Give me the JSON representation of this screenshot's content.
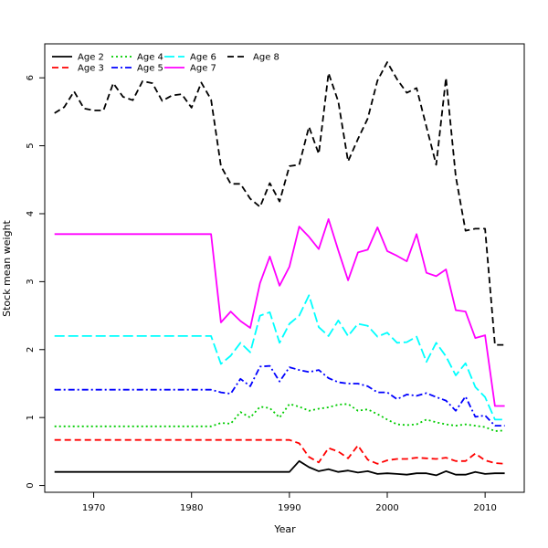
{
  "chart_data": {
    "type": "line",
    "title": "",
    "xlabel": "Year",
    "ylabel": "Stock mean weight",
    "xlim": [
      1965,
      2014
    ],
    "ylim": [
      -0.1,
      6.5
    ],
    "x_ticks": [
      1970,
      1980,
      1990,
      2000,
      2010
    ],
    "y_ticks": [
      0,
      1,
      2,
      3,
      4,
      5,
      6
    ],
    "grid": false,
    "legend_position": "top-left",
    "x": [
      1966,
      1967,
      1968,
      1969,
      1970,
      1971,
      1972,
      1973,
      1974,
      1975,
      1976,
      1977,
      1978,
      1979,
      1980,
      1981,
      1982,
      1983,
      1984,
      1985,
      1986,
      1987,
      1988,
      1989,
      1990,
      1991,
      1992,
      1993,
      1994,
      1995,
      1996,
      1997,
      1998,
      1999,
      2000,
      2001,
      2002,
      2003,
      2004,
      2005,
      2006,
      2007,
      2008,
      2009,
      2010,
      2011,
      2012
    ],
    "series": [
      {
        "name": "Age 2",
        "color": "#000000",
        "dash": "solid",
        "values": [
          0.2,
          0.2,
          0.2,
          0.2,
          0.2,
          0.2,
          0.2,
          0.2,
          0.2,
          0.2,
          0.2,
          0.2,
          0.2,
          0.2,
          0.2,
          0.2,
          0.2,
          0.2,
          0.2,
          0.2,
          0.2,
          0.2,
          0.2,
          0.2,
          0.2,
          0.36,
          0.27,
          0.21,
          0.24,
          0.2,
          0.22,
          0.19,
          0.21,
          0.17,
          0.18,
          0.17,
          0.16,
          0.18,
          0.18,
          0.15,
          0.21,
          0.16,
          0.16,
          0.2,
          0.17,
          0.18,
          0.18
        ]
      },
      {
        "name": "Age 3",
        "color": "#ff0000",
        "dash": "dashed",
        "values": [
          0.67,
          0.67,
          0.67,
          0.67,
          0.67,
          0.67,
          0.67,
          0.67,
          0.67,
          0.67,
          0.67,
          0.67,
          0.67,
          0.67,
          0.67,
          0.67,
          0.67,
          0.67,
          0.67,
          0.67,
          0.67,
          0.67,
          0.67,
          0.67,
          0.67,
          0.62,
          0.42,
          0.34,
          0.55,
          0.5,
          0.4,
          0.59,
          0.38,
          0.32,
          0.37,
          0.39,
          0.39,
          0.41,
          0.4,
          0.39,
          0.41,
          0.36,
          0.36,
          0.47,
          0.37,
          0.33,
          0.32
        ]
      },
      {
        "name": "Age 4",
        "color": "#00cc00",
        "dash": "dotted",
        "values": [
          0.87,
          0.87,
          0.87,
          0.87,
          0.87,
          0.87,
          0.87,
          0.87,
          0.87,
          0.87,
          0.87,
          0.87,
          0.87,
          0.87,
          0.87,
          0.87,
          0.87,
          0.92,
          0.91,
          1.08,
          1.0,
          1.16,
          1.14,
          1.0,
          1.2,
          1.16,
          1.1,
          1.13,
          1.15,
          1.19,
          1.2,
          1.1,
          1.12,
          1.05,
          0.97,
          0.9,
          0.89,
          0.9,
          0.97,
          0.93,
          0.9,
          0.88,
          0.9,
          0.88,
          0.86,
          0.8,
          0.81
        ]
      },
      {
        "name": "Age 5",
        "color": "#0000ff",
        "dash": "dashdot",
        "values": [
          1.41,
          1.41,
          1.41,
          1.41,
          1.41,
          1.41,
          1.41,
          1.41,
          1.41,
          1.41,
          1.41,
          1.41,
          1.41,
          1.41,
          1.41,
          1.41,
          1.41,
          1.37,
          1.35,
          1.57,
          1.46,
          1.75,
          1.76,
          1.53,
          1.74,
          1.7,
          1.67,
          1.7,
          1.58,
          1.52,
          1.5,
          1.5,
          1.46,
          1.37,
          1.37,
          1.27,
          1.34,
          1.32,
          1.36,
          1.3,
          1.25,
          1.1,
          1.31,
          1.01,
          1.03,
          0.88,
          0.88
        ]
      },
      {
        "name": "Age 6",
        "color": "#00ffff",
        "dash": "longdash",
        "values": [
          2.2,
          2.2,
          2.2,
          2.2,
          2.2,
          2.2,
          2.2,
          2.2,
          2.2,
          2.2,
          2.2,
          2.2,
          2.2,
          2.2,
          2.2,
          2.2,
          2.2,
          1.79,
          1.91,
          2.1,
          1.96,
          2.5,
          2.55,
          2.1,
          2.38,
          2.5,
          2.8,
          2.33,
          2.2,
          2.43,
          2.2,
          2.38,
          2.35,
          2.19,
          2.25,
          2.1,
          2.11,
          2.19,
          1.82,
          2.1,
          1.9,
          1.62,
          1.8,
          1.45,
          1.3,
          0.97,
          0.97
        ]
      },
      {
        "name": "Age 7",
        "color": "#ff00ff",
        "dash": "solid",
        "values": [
          3.7,
          3.7,
          3.7,
          3.7,
          3.7,
          3.7,
          3.7,
          3.7,
          3.7,
          3.7,
          3.7,
          3.7,
          3.7,
          3.7,
          3.7,
          3.7,
          3.7,
          2.4,
          2.56,
          2.42,
          2.32,
          2.98,
          3.37,
          2.94,
          3.22,
          3.81,
          3.66,
          3.48,
          3.92,
          3.46,
          3.02,
          3.43,
          3.47,
          3.8,
          3.45,
          3.38,
          3.3,
          3.7,
          3.13,
          3.08,
          3.18,
          2.58,
          2.56,
          2.17,
          2.21,
          1.17,
          1.17
        ]
      },
      {
        "name": "Age 8",
        "color": "#000000",
        "dash": "dashed",
        "values": [
          5.48,
          5.57,
          5.8,
          5.55,
          5.52,
          5.52,
          5.92,
          5.72,
          5.67,
          5.95,
          5.92,
          5.66,
          5.74,
          5.76,
          5.56,
          5.93,
          5.68,
          4.7,
          4.44,
          4.44,
          4.22,
          4.1,
          4.45,
          4.18,
          4.7,
          4.72,
          5.28,
          4.88,
          6.07,
          5.65,
          4.77,
          5.1,
          5.4,
          5.96,
          6.23,
          5.98,
          5.78,
          5.85,
          5.28,
          4.72,
          6.0,
          4.55,
          3.75,
          3.78,
          3.78,
          2.07,
          2.07
        ]
      }
    ]
  }
}
